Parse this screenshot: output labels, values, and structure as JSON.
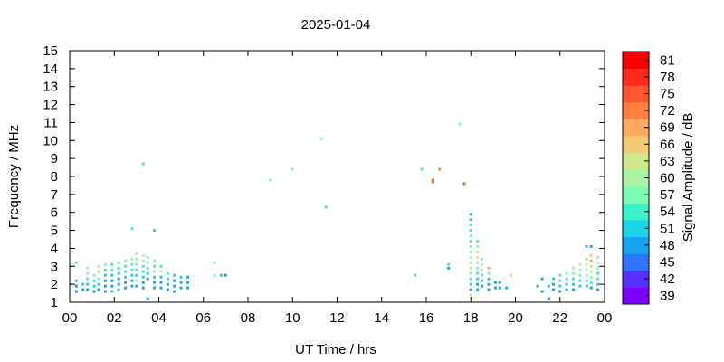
{
  "chart_data": {
    "type": "heatmap",
    "title": "2025-01-04",
    "xlabel": "UT Time / hrs",
    "ylabel": "Frequency / MHz",
    "xlim": [
      0,
      24
    ],
    "ylim": [
      1,
      15
    ],
    "x_tick_labels": [
      "00",
      "02",
      "04",
      "06",
      "08",
      "10",
      "12",
      "14",
      "16",
      "18",
      "20",
      "22",
      "00"
    ],
    "y_ticks": [
      "1",
      "2",
      "3",
      "4",
      "5",
      "6",
      "7",
      "8",
      "9",
      "10",
      "11",
      "12",
      "13",
      "14",
      "15"
    ],
    "grid": false,
    "colorbar": {
      "label": "Signal Amplitude / dB",
      "ticks": [
        "39",
        "42",
        "45",
        "48",
        "51",
        "54",
        "57",
        "60",
        "63",
        "66",
        "69",
        "72",
        "75",
        "78",
        "81"
      ],
      "range": [
        39,
        81
      ],
      "colors": [
        "#8000ff",
        "#5530ff",
        "#2e74ff",
        "#1aa3ee",
        "#1ad4e8",
        "#3ef0c8",
        "#7dfcb4",
        "#a8f5a0",
        "#cfe88c",
        "#f3cb74",
        "#ffa860",
        "#ff8040",
        "#ff5530",
        "#ff2a1a",
        "#ff0000"
      ]
    },
    "points": [
      {
        "x": 0.3,
        "y": 3.2,
        "v": 55
      },
      {
        "x": 0.3,
        "y": 2.2,
        "v": 52
      },
      {
        "x": 0.3,
        "y": 1.9,
        "v": 50
      },
      {
        "x": 0.3,
        "y": 1.6,
        "v": 49
      },
      {
        "x": 0.6,
        "y": 2.0,
        "v": 52
      },
      {
        "x": 0.6,
        "y": 1.7,
        "v": 50
      },
      {
        "x": 0.8,
        "y": 2.9,
        "v": 60
      },
      {
        "x": 0.8,
        "y": 2.6,
        "v": 57
      },
      {
        "x": 0.8,
        "y": 2.3,
        "v": 54
      },
      {
        "x": 0.8,
        "y": 2.0,
        "v": 51
      },
      {
        "x": 0.8,
        "y": 1.7,
        "v": 49
      },
      {
        "x": 1.1,
        "y": 2.5,
        "v": 58
      },
      {
        "x": 1.1,
        "y": 2.2,
        "v": 55
      },
      {
        "x": 1.1,
        "y": 1.9,
        "v": 52
      },
      {
        "x": 1.1,
        "y": 1.6,
        "v": 50
      },
      {
        "x": 1.3,
        "y": 3.0,
        "v": 62
      },
      {
        "x": 1.3,
        "y": 2.7,
        "v": 66
      },
      {
        "x": 1.3,
        "y": 2.3,
        "v": 56
      },
      {
        "x": 1.3,
        "y": 2.0,
        "v": 52
      },
      {
        "x": 1.3,
        "y": 1.7,
        "v": 49
      },
      {
        "x": 1.6,
        "y": 3.1,
        "v": 58
      },
      {
        "x": 1.6,
        "y": 2.8,
        "v": 55
      },
      {
        "x": 1.6,
        "y": 2.5,
        "v": 52
      },
      {
        "x": 1.6,
        "y": 2.2,
        "v": 50
      },
      {
        "x": 1.6,
        "y": 1.9,
        "v": 49
      },
      {
        "x": 1.6,
        "y": 1.6,
        "v": 50
      },
      {
        "x": 1.9,
        "y": 3.1,
        "v": 55
      },
      {
        "x": 1.9,
        "y": 2.8,
        "v": 53
      },
      {
        "x": 1.9,
        "y": 2.5,
        "v": 51
      },
      {
        "x": 1.9,
        "y": 2.2,
        "v": 50
      },
      {
        "x": 1.9,
        "y": 1.9,
        "v": 49
      },
      {
        "x": 1.9,
        "y": 1.6,
        "v": 51
      },
      {
        "x": 2.2,
        "y": 3.2,
        "v": 56
      },
      {
        "x": 2.2,
        "y": 2.9,
        "v": 54
      },
      {
        "x": 2.2,
        "y": 2.6,
        "v": 52
      },
      {
        "x": 2.2,
        "y": 2.3,
        "v": 50
      },
      {
        "x": 2.2,
        "y": 2.0,
        "v": 49
      },
      {
        "x": 2.2,
        "y": 1.7,
        "v": 52
      },
      {
        "x": 2.5,
        "y": 3.3,
        "v": 57
      },
      {
        "x": 2.5,
        "y": 3.0,
        "v": 55
      },
      {
        "x": 2.5,
        "y": 2.7,
        "v": 53
      },
      {
        "x": 2.5,
        "y": 2.4,
        "v": 51
      },
      {
        "x": 2.5,
        "y": 2.1,
        "v": 50
      },
      {
        "x": 2.5,
        "y": 1.8,
        "v": 49
      },
      {
        "x": 2.8,
        "y": 5.1,
        "v": 53
      },
      {
        "x": 2.8,
        "y": 3.4,
        "v": 58
      },
      {
        "x": 2.8,
        "y": 3.1,
        "v": 55
      },
      {
        "x": 2.8,
        "y": 2.8,
        "v": 53
      },
      {
        "x": 2.8,
        "y": 2.5,
        "v": 51
      },
      {
        "x": 2.8,
        "y": 2.2,
        "v": 50
      },
      {
        "x": 2.8,
        "y": 1.9,
        "v": 49
      },
      {
        "x": 3.0,
        "y": 3.7,
        "v": 62
      },
      {
        "x": 3.0,
        "y": 3.4,
        "v": 59
      },
      {
        "x": 3.0,
        "y": 3.1,
        "v": 56
      },
      {
        "x": 3.0,
        "y": 2.8,
        "v": 54
      },
      {
        "x": 3.0,
        "y": 2.5,
        "v": 52
      },
      {
        "x": 3.0,
        "y": 2.2,
        "v": 63
      },
      {
        "x": 3.0,
        "y": 1.9,
        "v": 50
      },
      {
        "x": 3.3,
        "y": 8.7,
        "v": 55
      },
      {
        "x": 3.3,
        "y": 3.6,
        "v": 61
      },
      {
        "x": 3.3,
        "y": 3.3,
        "v": 58
      },
      {
        "x": 3.3,
        "y": 3.0,
        "v": 55
      },
      {
        "x": 3.3,
        "y": 2.7,
        "v": 53
      },
      {
        "x": 3.3,
        "y": 2.4,
        "v": 51
      },
      {
        "x": 3.3,
        "y": 2.1,
        "v": 50
      },
      {
        "x": 3.3,
        "y": 1.8,
        "v": 49
      },
      {
        "x": 3.5,
        "y": 3.5,
        "v": 58
      },
      {
        "x": 3.5,
        "y": 3.2,
        "v": 56
      },
      {
        "x": 3.5,
        "y": 2.9,
        "v": 54
      },
      {
        "x": 3.5,
        "y": 2.6,
        "v": 52
      },
      {
        "x": 3.5,
        "y": 2.3,
        "v": 50
      },
      {
        "x": 3.5,
        "y": 1.2,
        "v": 49
      },
      {
        "x": 3.8,
        "y": 5.0,
        "v": 52
      },
      {
        "x": 3.8,
        "y": 3.3,
        "v": 56
      },
      {
        "x": 3.8,
        "y": 3.0,
        "v": 54
      },
      {
        "x": 3.8,
        "y": 2.7,
        "v": 65
      },
      {
        "x": 3.8,
        "y": 2.4,
        "v": 52
      },
      {
        "x": 3.8,
        "y": 2.1,
        "v": 50
      },
      {
        "x": 3.8,
        "y": 1.8,
        "v": 49
      },
      {
        "x": 4.1,
        "y": 3.0,
        "v": 55
      },
      {
        "x": 4.1,
        "y": 2.7,
        "v": 62
      },
      {
        "x": 4.1,
        "y": 2.4,
        "v": 52
      },
      {
        "x": 4.1,
        "y": 2.1,
        "v": 50
      },
      {
        "x": 4.1,
        "y": 1.8,
        "v": 49
      },
      {
        "x": 4.4,
        "y": 2.6,
        "v": 54
      },
      {
        "x": 4.4,
        "y": 2.3,
        "v": 51
      },
      {
        "x": 4.4,
        "y": 2.0,
        "v": 49
      },
      {
        "x": 4.4,
        "y": 1.7,
        "v": 48
      },
      {
        "x": 4.7,
        "y": 2.5,
        "v": 52
      },
      {
        "x": 4.7,
        "y": 2.2,
        "v": 50
      },
      {
        "x": 4.7,
        "y": 1.9,
        "v": 49
      },
      {
        "x": 4.7,
        "y": 1.6,
        "v": 48
      },
      {
        "x": 5.0,
        "y": 2.4,
        "v": 51
      },
      {
        "x": 5.0,
        "y": 2.1,
        "v": 50
      },
      {
        "x": 5.0,
        "y": 1.8,
        "v": 49
      },
      {
        "x": 5.3,
        "y": 2.4,
        "v": 50
      },
      {
        "x": 5.3,
        "y": 2.1,
        "v": 49
      },
      {
        "x": 5.3,
        "y": 1.8,
        "v": 49
      },
      {
        "x": 6.5,
        "y": 3.2,
        "v": 57
      },
      {
        "x": 6.5,
        "y": 2.5,
        "v": 56
      },
      {
        "x": 6.8,
        "y": 2.5,
        "v": 51
      },
      {
        "x": 7.0,
        "y": 2.5,
        "v": 50
      },
      {
        "x": 9.0,
        "y": 7.8,
        "v": 57
      },
      {
        "x": 10.0,
        "y": 8.4,
        "v": 56
      },
      {
        "x": 11.3,
        "y": 10.1,
        "v": 56
      },
      {
        "x": 11.5,
        "y": 6.3,
        "v": 55
      },
      {
        "x": 15.5,
        "y": 2.5,
        "v": 54
      },
      {
        "x": 15.8,
        "y": 8.4,
        "v": 55
      },
      {
        "x": 16.3,
        "y": 7.8,
        "v": 75
      },
      {
        "x": 16.3,
        "y": 7.7,
        "v": 73
      },
      {
        "x": 16.6,
        "y": 8.4,
        "v": 71
      },
      {
        "x": 17.0,
        "y": 3.1,
        "v": 54
      },
      {
        "x": 17.0,
        "y": 2.9,
        "v": 50
      },
      {
        "x": 17.5,
        "y": 10.9,
        "v": 56
      },
      {
        "x": 17.7,
        "y": 7.6,
        "v": 74
      },
      {
        "x": 18.0,
        "y": 5.9,
        "v": 50
      },
      {
        "x": 18.0,
        "y": 5.6,
        "v": 52
      },
      {
        "x": 18.0,
        "y": 5.3,
        "v": 53
      },
      {
        "x": 18.0,
        "y": 5.0,
        "v": 55
      },
      {
        "x": 18.0,
        "y": 4.7,
        "v": 57
      },
      {
        "x": 18.0,
        "y": 4.4,
        "v": 54
      },
      {
        "x": 18.0,
        "y": 4.1,
        "v": 56
      },
      {
        "x": 18.0,
        "y": 3.8,
        "v": 58
      },
      {
        "x": 18.0,
        "y": 3.5,
        "v": 60
      },
      {
        "x": 18.0,
        "y": 3.2,
        "v": 62
      },
      {
        "x": 18.0,
        "y": 2.9,
        "v": 59
      },
      {
        "x": 18.0,
        "y": 2.6,
        "v": 57
      },
      {
        "x": 18.0,
        "y": 2.3,
        "v": 55
      },
      {
        "x": 18.0,
        "y": 2.0,
        "v": 52
      },
      {
        "x": 18.0,
        "y": 1.7,
        "v": 50
      },
      {
        "x": 18.0,
        "y": 1.4,
        "v": 61
      },
      {
        "x": 18.3,
        "y": 4.4,
        "v": 55
      },
      {
        "x": 18.3,
        "y": 4.1,
        "v": 57
      },
      {
        "x": 18.3,
        "y": 3.8,
        "v": 60
      },
      {
        "x": 18.3,
        "y": 3.5,
        "v": 62
      },
      {
        "x": 18.3,
        "y": 3.2,
        "v": 61
      },
      {
        "x": 18.3,
        "y": 2.9,
        "v": 58
      },
      {
        "x": 18.3,
        "y": 2.6,
        "v": 55
      },
      {
        "x": 18.3,
        "y": 2.3,
        "v": 52
      },
      {
        "x": 18.3,
        "y": 2.0,
        "v": 50
      },
      {
        "x": 18.3,
        "y": 1.7,
        "v": 49
      },
      {
        "x": 18.5,
        "y": 3.4,
        "v": 58
      },
      {
        "x": 18.5,
        "y": 3.1,
        "v": 60
      },
      {
        "x": 18.5,
        "y": 2.8,
        "v": 57
      },
      {
        "x": 18.5,
        "y": 2.5,
        "v": 54
      },
      {
        "x": 18.5,
        "y": 2.2,
        "v": 52
      },
      {
        "x": 18.5,
        "y": 1.9,
        "v": 50
      },
      {
        "x": 18.8,
        "y": 2.9,
        "v": 67
      },
      {
        "x": 18.8,
        "y": 2.6,
        "v": 56
      },
      {
        "x": 18.8,
        "y": 2.3,
        "v": 52
      },
      {
        "x": 18.8,
        "y": 2.0,
        "v": 50
      },
      {
        "x": 18.8,
        "y": 1.7,
        "v": 49
      },
      {
        "x": 19.1,
        "y": 2.1,
        "v": 50
      },
      {
        "x": 19.1,
        "y": 1.8,
        "v": 49
      },
      {
        "x": 19.3,
        "y": 2.1,
        "v": 49
      },
      {
        "x": 19.3,
        "y": 1.8,
        "v": 48
      },
      {
        "x": 19.6,
        "y": 1.8,
        "v": 50
      },
      {
        "x": 19.8,
        "y": 2.5,
        "v": 62
      },
      {
        "x": 21.0,
        "y": 1.9,
        "v": 50
      },
      {
        "x": 21.2,
        "y": 2.3,
        "v": 50
      },
      {
        "x": 21.2,
        "y": 1.6,
        "v": 49
      },
      {
        "x": 21.5,
        "y": 1.9,
        "v": 51
      },
      {
        "x": 21.5,
        "y": 1.2,
        "v": 50
      },
      {
        "x": 21.7,
        "y": 2.3,
        "v": 52
      },
      {
        "x": 21.7,
        "y": 2.0,
        "v": 50
      },
      {
        "x": 21.7,
        "y": 1.7,
        "v": 49
      },
      {
        "x": 22.0,
        "y": 2.5,
        "v": 55
      },
      {
        "x": 22.0,
        "y": 2.2,
        "v": 53
      },
      {
        "x": 22.0,
        "y": 1.9,
        "v": 51
      },
      {
        "x": 22.0,
        "y": 1.6,
        "v": 49
      },
      {
        "x": 22.3,
        "y": 2.6,
        "v": 57
      },
      {
        "x": 22.3,
        "y": 2.3,
        "v": 54
      },
      {
        "x": 22.3,
        "y": 2.0,
        "v": 52
      },
      {
        "x": 22.3,
        "y": 1.7,
        "v": 50
      },
      {
        "x": 22.6,
        "y": 2.9,
        "v": 62
      },
      {
        "x": 22.6,
        "y": 2.6,
        "v": 58
      },
      {
        "x": 22.6,
        "y": 2.3,
        "v": 55
      },
      {
        "x": 22.6,
        "y": 2.0,
        "v": 52
      },
      {
        "x": 22.6,
        "y": 1.7,
        "v": 50
      },
      {
        "x": 22.9,
        "y": 3.1,
        "v": 63
      },
      {
        "x": 22.9,
        "y": 2.8,
        "v": 60
      },
      {
        "x": 22.9,
        "y": 2.5,
        "v": 57
      },
      {
        "x": 22.9,
        "y": 2.2,
        "v": 54
      },
      {
        "x": 22.9,
        "y": 1.9,
        "v": 51
      },
      {
        "x": 23.2,
        "y": 4.1,
        "v": 51
      },
      {
        "x": 23.2,
        "y": 3.4,
        "v": 61
      },
      {
        "x": 23.2,
        "y": 3.1,
        "v": 63
      },
      {
        "x": 23.2,
        "y": 2.8,
        "v": 60
      },
      {
        "x": 23.2,
        "y": 2.5,
        "v": 57
      },
      {
        "x": 23.2,
        "y": 2.2,
        "v": 54
      },
      {
        "x": 23.2,
        "y": 1.9,
        "v": 51
      },
      {
        "x": 23.4,
        "y": 4.1,
        "v": 50
      },
      {
        "x": 23.4,
        "y": 3.6,
        "v": 65
      },
      {
        "x": 23.4,
        "y": 3.3,
        "v": 67
      },
      {
        "x": 23.4,
        "y": 3.0,
        "v": 62
      },
      {
        "x": 23.4,
        "y": 2.7,
        "v": 59
      },
      {
        "x": 23.4,
        "y": 2.4,
        "v": 56
      },
      {
        "x": 23.4,
        "y": 2.1,
        "v": 53
      },
      {
        "x": 23.4,
        "y": 1.8,
        "v": 50
      },
      {
        "x": 23.7,
        "y": 3.5,
        "v": 62
      },
      {
        "x": 23.7,
        "y": 3.2,
        "v": 60
      },
      {
        "x": 23.7,
        "y": 2.9,
        "v": 58
      },
      {
        "x": 23.7,
        "y": 2.6,
        "v": 55
      },
      {
        "x": 23.7,
        "y": 2.3,
        "v": 53
      },
      {
        "x": 23.7,
        "y": 2.0,
        "v": 51
      },
      {
        "x": 23.7,
        "y": 1.7,
        "v": 50
      }
    ]
  }
}
